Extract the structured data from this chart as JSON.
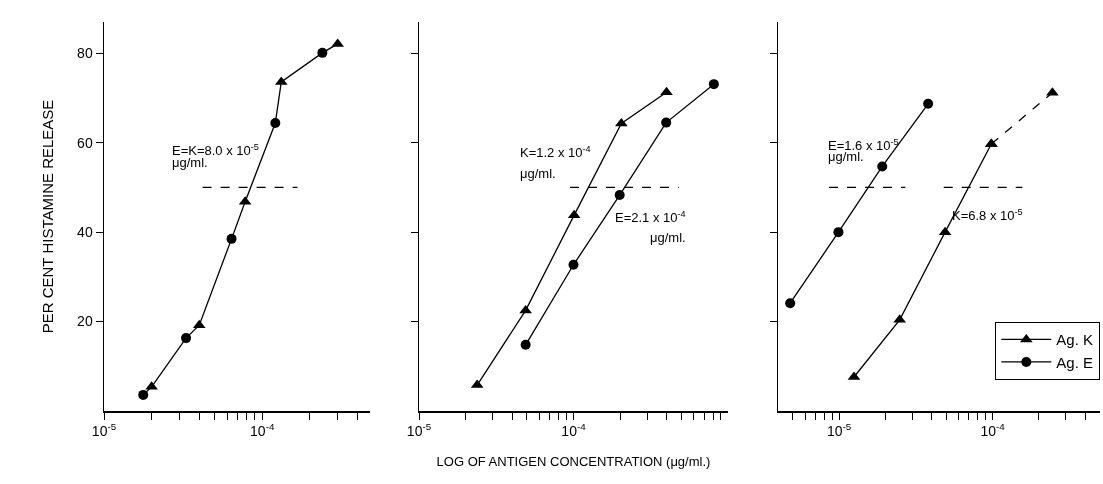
{
  "chart_data": [
    {
      "type": "line",
      "ylabel": "PER CENT HISTAMINE RELEASE",
      "xlim": [
        1e-05,
        0.00048
      ],
      "ylim": [
        0,
        87
      ],
      "log": "x",
      "grid": false,
      "legend": false,
      "xticks": [
        {
          "value": 1e-05,
          "label": "10$^{-5}$"
        },
        {
          "value": 2e-05,
          "label": null
        },
        {
          "value": 3e-05,
          "label": null
        },
        {
          "value": 4e-05,
          "label": null
        },
        {
          "value": 5e-05,
          "label": null
        },
        {
          "value": 6e-05,
          "label": null
        },
        {
          "value": 7e-05,
          "label": null
        },
        {
          "value": 8e-05,
          "label": null
        },
        {
          "value": 9e-05,
          "label": null
        },
        {
          "value": 0.0001,
          "label": "10$^{-4}$"
        },
        {
          "value": 0.0002,
          "label": null
        },
        {
          "value": 0.0003,
          "label": null
        },
        {
          "value": 0.0004,
          "label": null
        }
      ],
      "yticks": [
        20,
        40,
        60,
        80
      ],
      "series": [
        {
          "type": "line",
          "color": "#000000",
          "marker": "none",
          "line_style": "solid",
          "x": [
            1.77e-05,
            2e-05,
            3.3e-05,
            4e-05,
            6.4e-05,
            7.8e-05,
            0.000121,
            0.000132,
            0.00024,
            0.0003
          ],
          "values": [
            3.6,
            5.4,
            16.3,
            19.2,
            38.5,
            46.8,
            64.4,
            73.6,
            80.1,
            82.1
          ]
        },
        {
          "type": "scatter",
          "color": "#000000",
          "marker": "triangle",
          "x": [
            2e-05,
            4e-05,
            7.8e-05,
            0.000132,
            0.0003
          ],
          "values": [
            5.4,
            19.2,
            46.8,
            73.6,
            82.1
          ]
        },
        {
          "type": "scatter",
          "color": "#000000",
          "marker": "circle",
          "x": [
            1.77e-05,
            3.3e-05,
            6.4e-05,
            0.000121,
            0.00024
          ],
          "values": [
            3.6,
            16.3,
            38.5,
            64.4,
            80.1
          ]
        },
        {
          "type": "line",
          "color": "#000000",
          "marker": "none",
          "line_style": "dashed",
          "x": [
            4.2e-05,
            0.000167
          ],
          "values": [
            50,
            50
          ]
        }
      ],
      "annotations": [
        "E=K=8.0 x 10$^{-5}$",
        "μg/ml."
      ]
    },
    {
      "type": "line",
      "xlabel": "LOG OF ANTIGEN CONCENTRATION (μg/ml.)",
      "xlim": [
        1e-05,
        0.001
      ],
      "ylim": [
        0,
        87
      ],
      "log": "x",
      "grid": false,
      "legend": false,
      "tick_labels": "x",
      "xticks": [
        {
          "value": 1e-05,
          "label": "10$^{-5}$"
        },
        {
          "value": 2e-05,
          "label": null
        },
        {
          "value": 3e-05,
          "label": null
        },
        {
          "value": 4e-05,
          "label": null
        },
        {
          "value": 5e-05,
          "label": null
        },
        {
          "value": 6e-05,
          "label": null
        },
        {
          "value": 7e-05,
          "label": null
        },
        {
          "value": 8e-05,
          "label": null
        },
        {
          "value": 9e-05,
          "label": null
        },
        {
          "value": 0.0001,
          "label": "10$^{-4}$"
        },
        {
          "value": 0.0002,
          "label": null
        },
        {
          "value": 0.0003,
          "label": null
        },
        {
          "value": 0.0004,
          "label": null
        },
        {
          "value": 0.0005,
          "label": null
        },
        {
          "value": 0.0006,
          "label": null
        },
        {
          "value": 0.0007,
          "label": null
        },
        {
          "value": 0.0008,
          "label": null
        },
        {
          "value": 0.0009,
          "label": null
        }
      ],
      "yticks": [
        20,
        40,
        60,
        80
      ],
      "series": [
        {
          "type": "line",
          "color": "#000000",
          "marker": "triangle",
          "line_style": "solid",
          "x": [
            2.38e-05,
            4.9e-05,
            0.000101,
            0.000204,
            0.0004
          ],
          "values": [
            5.8,
            22.5,
            43.8,
            64.3,
            71.3
          ]
        },
        {
          "type": "line",
          "color": "#000000",
          "marker": "circle",
          "line_style": "solid",
          "x": [
            4.9e-05,
            0.0001,
            0.000199,
            0.000398,
            0.00081
          ],
          "values": [
            14.8,
            32.7,
            48.3,
            64.5,
            73.1
          ]
        },
        {
          "type": "line",
          "color": "#000000",
          "marker": "none",
          "line_style": "dashed",
          "x": [
            9.5e-05,
            0.00048
          ],
          "values": [
            50,
            50
          ]
        }
      ],
      "annotations": [
        "K=1.2 x 10$^{-4}$",
        "μg/ml.",
        "E=2.1 x 10$^{-4}$",
        "μg/ml."
      ]
    },
    {
      "type": "line",
      "xlim": [
        4e-06,
        0.0005
      ],
      "ylim": [
        0,
        87
      ],
      "log": "x",
      "grid": false,
      "legend": "bottom right",
      "tick_labels": "x",
      "xticks": [
        {
          "value": 5e-06,
          "label": null
        },
        {
          "value": 6e-06,
          "label": null
        },
        {
          "value": 7e-06,
          "label": null
        },
        {
          "value": 8e-06,
          "label": null
        },
        {
          "value": 9e-06,
          "label": null
        },
        {
          "value": 1e-05,
          "label": "10$^{-5}$"
        },
        {
          "value": 2e-05,
          "label": null
        },
        {
          "value": 3e-05,
          "label": null
        },
        {
          "value": 4e-05,
          "label": null
        },
        {
          "value": 5e-05,
          "label": null
        },
        {
          "value": 6e-05,
          "label": null
        },
        {
          "value": 7e-05,
          "label": null
        },
        {
          "value": 8e-05,
          "label": null
        },
        {
          "value": 9e-05,
          "label": null
        },
        {
          "value": 0.0001,
          "label": "10$^{-4}$"
        },
        {
          "value": 0.0002,
          "label": null
        },
        {
          "value": 0.0003,
          "label": null
        },
        {
          "value": 0.0004,
          "label": null
        }
      ],
      "yticks": [
        20,
        40,
        60,
        80
      ],
      "series": [
        {
          "name": "Ag. K",
          "type": "line",
          "color": "#000000",
          "marker": "triangle",
          "line_style": "solid",
          "x": [
            1.25e-05,
            2.48e-05,
            4.9e-05,
            9.8e-05
          ],
          "values": [
            7.6,
            20.4,
            40.0,
            59.7
          ]
        },
        {
          "name": "Ag. E",
          "type": "line",
          "color": "#000000",
          "marker": "circle",
          "line_style": "solid",
          "x": [
            4.8e-06,
            9.9e-06,
            1.91e-05,
            3.8e-05
          ],
          "values": [
            24.1,
            40.0,
            54.7,
            68.7
          ]
        },
        {
          "type": "line",
          "color": "#000000",
          "marker": "triangle",
          "line_style": "dashed",
          "x": [
            9.8e-05,
            0.000245
          ],
          "values": [
            59.7,
            71.2
          ]
        },
        {
          "type": "line",
          "color": "#000000",
          "marker": "none",
          "line_style": "dashed",
          "x": [
            8.6e-06,
            2.7e-05
          ],
          "values": [
            50,
            50
          ]
        },
        {
          "type": "line",
          "color": "#000000",
          "marker": "none",
          "line_style": "dashed",
          "x": [
            4.8e-05,
            0.000156
          ],
          "values": [
            50,
            50
          ]
        }
      ],
      "annotations": [
        "E=1.6 x 10$^{-5}$",
        "μg/ml.",
        "K=6.8 x 10$^{-5}$"
      ]
    }
  ]
}
